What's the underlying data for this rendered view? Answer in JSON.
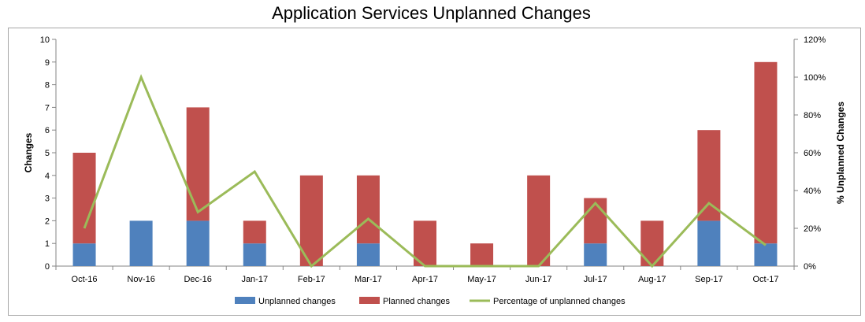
{
  "chart_data": {
    "type": "bar",
    "title": "Application Services Unplanned Changes",
    "categories": [
      "Oct-16",
      "Nov-16",
      "Dec-16",
      "Jan-17",
      "Feb-17",
      "Mar-17",
      "Apr-17",
      "May-17",
      "Jun-17",
      "Jul-17",
      "Aug-17",
      "Sep-17",
      "Oct-17"
    ],
    "series": [
      {
        "name": "Unplanned changes",
        "type": "bar",
        "stacked": true,
        "axis": "left",
        "color": "#4f81bd",
        "values": [
          1,
          2,
          2,
          1,
          0,
          1,
          0,
          0,
          0,
          1,
          0,
          2,
          1
        ]
      },
      {
        "name": "Planned changes",
        "type": "bar",
        "stacked": true,
        "axis": "left",
        "color": "#c0504d",
        "values": [
          4,
          0,
          5,
          1,
          4,
          3,
          2,
          1,
          4,
          2,
          2,
          4,
          8
        ]
      },
      {
        "name": "Percentage of unplanned changes",
        "type": "line",
        "axis": "right",
        "color": "#9bbb59",
        "values": [
          20,
          100,
          28.6,
          50,
          0,
          25,
          0,
          0,
          0,
          33.3,
          0,
          33.3,
          11.1
        ]
      }
    ],
    "ylabel": "Changes",
    "ylim": [
      0,
      10
    ],
    "yticks": [
      "0",
      "1",
      "2",
      "3",
      "4",
      "5",
      "6",
      "7",
      "8",
      "9",
      "10"
    ],
    "y2label": "% Unplanned Changes",
    "y2lim": [
      0,
      120
    ],
    "y2ticks": [
      "0%",
      "20%",
      "40%",
      "60%",
      "80%",
      "100%",
      "120%"
    ],
    "grid": false,
    "legend": "bottom"
  }
}
